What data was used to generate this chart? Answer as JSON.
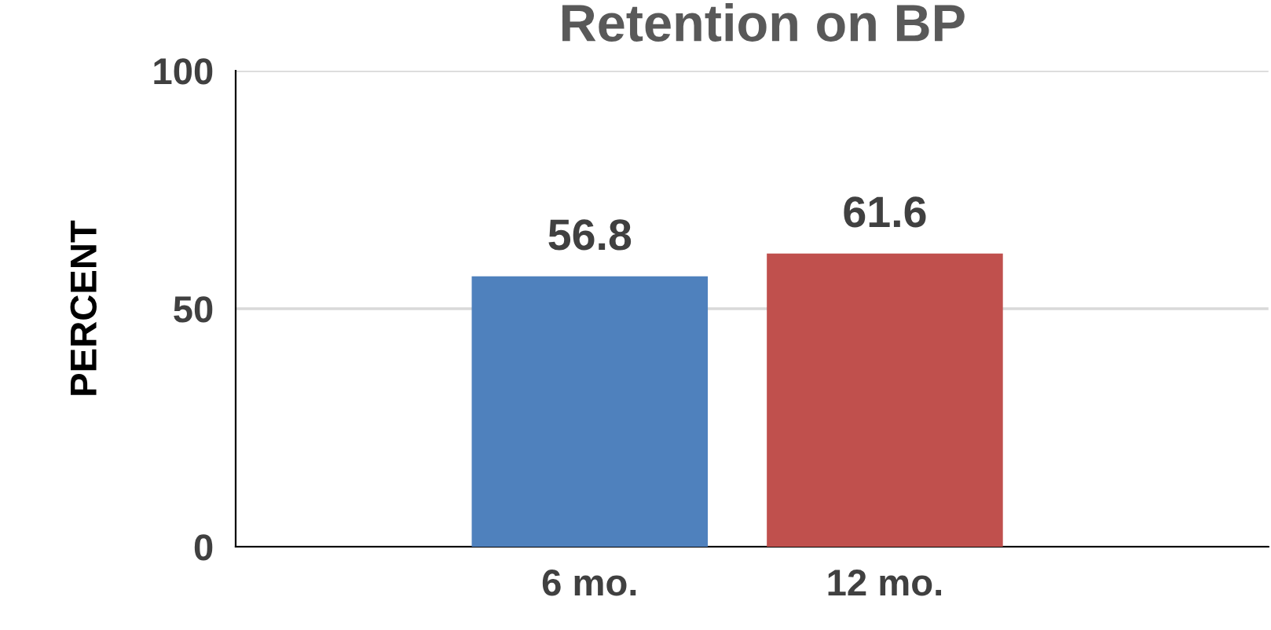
{
  "chart_data": {
    "type": "bar",
    "title": "Retention on BP",
    "ylabel": "PERCENT",
    "categories": [
      "6 mo.",
      "12 mo."
    ],
    "values": [
      56.8,
      61.6
    ],
    "colors": [
      "#4f81bd",
      "#c0504d"
    ],
    "ylim": [
      0,
      100
    ],
    "yticks": [
      0,
      50,
      100
    ],
    "grid": "y",
    "data_labels": true
  }
}
